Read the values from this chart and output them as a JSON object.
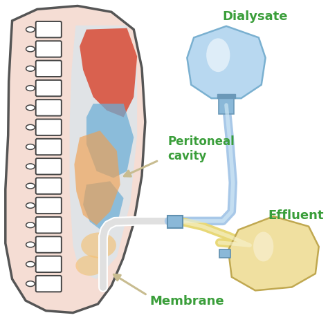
{
  "labels": {
    "dialysate": "Dialysate",
    "peritoneal_cavity": "Peritoneal\ncavity",
    "membrane": "Membrane",
    "effluent": "Effluent"
  },
  "label_color": "#3a9e3a",
  "label_fontsize": 13,
  "colors": {
    "skin_fill": "#f5ddd4",
    "skin_outline": "#555555",
    "spine_fill": "#ffffff",
    "spine_outline": "#444444",
    "organ_red": "#d94f3a",
    "organ_blue": "#6baed6",
    "organ_orange": "#f0a050",
    "peritoneum_fill": "#d0e8f5",
    "tube_blue": "#a8c8e8",
    "tube_yellow": "#e8d878",
    "bag_blue_fill": "#b8d8f0",
    "bag_yellow_fill": "#f0e0a0",
    "background": "#ffffff",
    "arrow_color": "#c8bc90"
  }
}
